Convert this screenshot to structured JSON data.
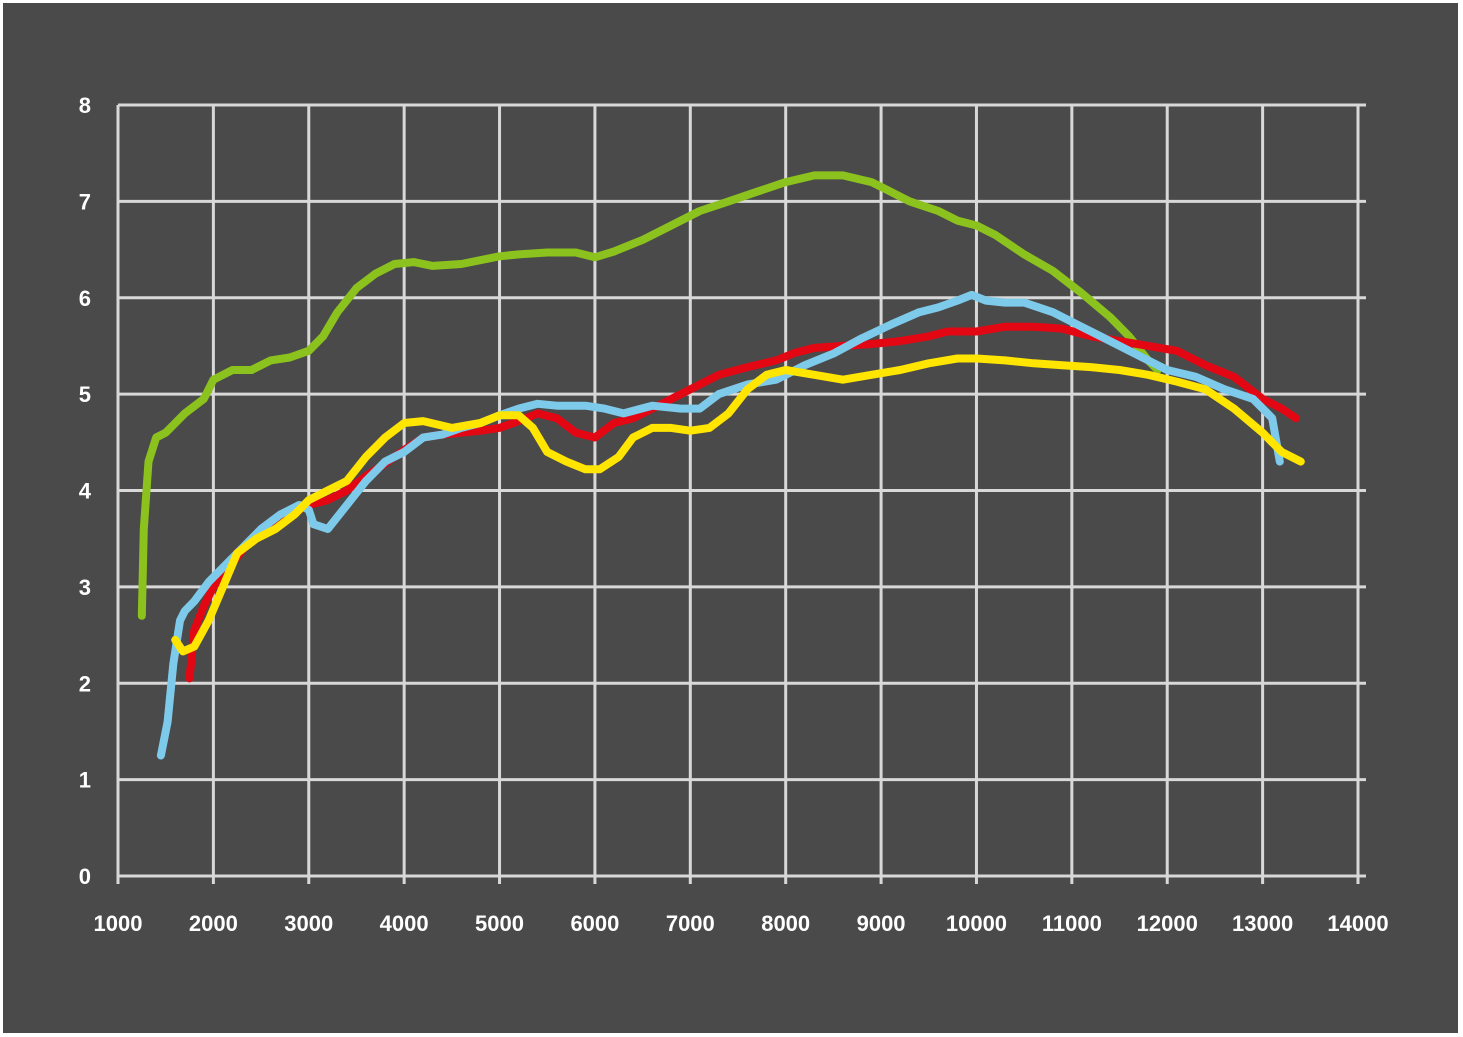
{
  "chart_data": {
    "type": "line",
    "title": "",
    "xlabel": "",
    "ylabel": "",
    "xlim": [
      1000,
      14000
    ],
    "ylim": [
      0,
      8
    ],
    "x_ticks": [
      "1000",
      "2000",
      "3000",
      "4000",
      "5000",
      "6000",
      "7000",
      "8000",
      "9000",
      "10000",
      "11000",
      "12000",
      "13000",
      "14000"
    ],
    "y_ticks": [
      "0",
      "1",
      "2",
      "3",
      "4",
      "5",
      "6",
      "7",
      "8"
    ],
    "grid": true,
    "legend": "none",
    "colors": {
      "background": "#4a4a4a",
      "grid": "#d8d8d8",
      "text": "#ffffff"
    },
    "series": [
      {
        "color": "#8cc21d",
        "points": [
          [
            1250,
            2.7
          ],
          [
            1270,
            3.6
          ],
          [
            1320,
            4.3
          ],
          [
            1400,
            4.55
          ],
          [
            1500,
            4.6
          ],
          [
            1700,
            4.8
          ],
          [
            1900,
            4.95
          ],
          [
            2000,
            5.15
          ],
          [
            2200,
            5.25
          ],
          [
            2400,
            5.25
          ],
          [
            2600,
            5.35
          ],
          [
            2800,
            5.38
          ],
          [
            3000,
            5.45
          ],
          [
            3150,
            5.6
          ],
          [
            3300,
            5.85
          ],
          [
            3500,
            6.1
          ],
          [
            3700,
            6.25
          ],
          [
            3900,
            6.35
          ],
          [
            4100,
            6.37
          ],
          [
            4300,
            6.33
          ],
          [
            4600,
            6.35
          ],
          [
            5000,
            6.43
          ],
          [
            5200,
            6.45
          ],
          [
            5500,
            6.47
          ],
          [
            5800,
            6.47
          ],
          [
            6000,
            6.42
          ],
          [
            6200,
            6.48
          ],
          [
            6500,
            6.6
          ],
          [
            6800,
            6.75
          ],
          [
            7100,
            6.9
          ],
          [
            7400,
            7.0
          ],
          [
            7700,
            7.1
          ],
          [
            8000,
            7.2
          ],
          [
            8300,
            7.27
          ],
          [
            8600,
            7.27
          ],
          [
            8900,
            7.2
          ],
          [
            9100,
            7.1
          ],
          [
            9300,
            7.0
          ],
          [
            9600,
            6.9
          ],
          [
            9800,
            6.8
          ],
          [
            10000,
            6.75
          ],
          [
            10200,
            6.65
          ],
          [
            10500,
            6.45
          ],
          [
            10800,
            6.28
          ],
          [
            11100,
            6.05
          ],
          [
            11400,
            5.8
          ],
          [
            11600,
            5.6
          ],
          [
            11800,
            5.35
          ],
          [
            11900,
            5.25
          ]
        ]
      },
      {
        "color": "#e30613",
        "points": [
          [
            1750,
            2.05
          ],
          [
            1800,
            2.55
          ],
          [
            1900,
            2.8
          ],
          [
            2000,
            3.0
          ],
          [
            2200,
            3.25
          ],
          [
            2400,
            3.5
          ],
          [
            2600,
            3.65
          ],
          [
            2800,
            3.75
          ],
          [
            3000,
            3.85
          ],
          [
            3200,
            3.9
          ],
          [
            3400,
            4.0
          ],
          [
            3600,
            4.15
          ],
          [
            3800,
            4.28
          ],
          [
            4000,
            4.42
          ],
          [
            4200,
            4.55
          ],
          [
            4400,
            4.58
          ],
          [
            4600,
            4.6
          ],
          [
            4800,
            4.62
          ],
          [
            5000,
            4.65
          ],
          [
            5200,
            4.72
          ],
          [
            5400,
            4.8
          ],
          [
            5600,
            4.75
          ],
          [
            5800,
            4.6
          ],
          [
            6000,
            4.55
          ],
          [
            6200,
            4.7
          ],
          [
            6400,
            4.75
          ],
          [
            6700,
            4.9
          ],
          [
            7000,
            5.05
          ],
          [
            7300,
            5.2
          ],
          [
            7600,
            5.28
          ],
          [
            7900,
            5.35
          ],
          [
            8100,
            5.43
          ],
          [
            8300,
            5.48
          ],
          [
            8600,
            5.5
          ],
          [
            8900,
            5.52
          ],
          [
            9200,
            5.55
          ],
          [
            9500,
            5.6
          ],
          [
            9700,
            5.65
          ],
          [
            10000,
            5.65
          ],
          [
            10300,
            5.7
          ],
          [
            10600,
            5.7
          ],
          [
            10900,
            5.68
          ],
          [
            11200,
            5.6
          ],
          [
            11500,
            5.55
          ],
          [
            11800,
            5.5
          ],
          [
            12100,
            5.45
          ],
          [
            12400,
            5.3
          ],
          [
            12700,
            5.18
          ],
          [
            13000,
            4.95
          ],
          [
            13200,
            4.85
          ],
          [
            13350,
            4.75
          ]
        ]
      },
      {
        "color": "#7dcaeb",
        "points": [
          [
            1450,
            1.25
          ],
          [
            1520,
            1.6
          ],
          [
            1580,
            2.2
          ],
          [
            1650,
            2.65
          ],
          [
            1700,
            2.75
          ],
          [
            1800,
            2.85
          ],
          [
            1950,
            3.05
          ],
          [
            2100,
            3.2
          ],
          [
            2300,
            3.4
          ],
          [
            2500,
            3.6
          ],
          [
            2700,
            3.75
          ],
          [
            2900,
            3.85
          ],
          [
            3000,
            3.8
          ],
          [
            3050,
            3.65
          ],
          [
            3200,
            3.6
          ],
          [
            3400,
            3.85
          ],
          [
            3600,
            4.1
          ],
          [
            3800,
            4.3
          ],
          [
            4000,
            4.4
          ],
          [
            4200,
            4.55
          ],
          [
            4400,
            4.58
          ],
          [
            4600,
            4.65
          ],
          [
            4800,
            4.7
          ],
          [
            5000,
            4.78
          ],
          [
            5200,
            4.85
          ],
          [
            5400,
            4.9
          ],
          [
            5600,
            4.88
          ],
          [
            5900,
            4.88
          ],
          [
            6100,
            4.85
          ],
          [
            6300,
            4.8
          ],
          [
            6600,
            4.88
          ],
          [
            6900,
            4.85
          ],
          [
            7100,
            4.85
          ],
          [
            7300,
            5.0
          ],
          [
            7600,
            5.1
          ],
          [
            7900,
            5.15
          ],
          [
            8200,
            5.3
          ],
          [
            8500,
            5.42
          ],
          [
            8800,
            5.58
          ],
          [
            9100,
            5.72
          ],
          [
            9400,
            5.85
          ],
          [
            9600,
            5.9
          ],
          [
            9800,
            5.97
          ],
          [
            9950,
            6.03
          ],
          [
            10100,
            5.97
          ],
          [
            10300,
            5.95
          ],
          [
            10500,
            5.95
          ],
          [
            10800,
            5.85
          ],
          [
            11100,
            5.7
          ],
          [
            11400,
            5.55
          ],
          [
            11700,
            5.4
          ],
          [
            12000,
            5.25
          ],
          [
            12300,
            5.18
          ],
          [
            12600,
            5.05
          ],
          [
            12900,
            4.95
          ],
          [
            13100,
            4.75
          ],
          [
            13180,
            4.3
          ]
        ]
      },
      {
        "color": "#ffe500",
        "points": [
          [
            1600,
            2.45
          ],
          [
            1680,
            2.33
          ],
          [
            1800,
            2.38
          ],
          [
            1950,
            2.65
          ],
          [
            2100,
            3.0
          ],
          [
            2250,
            3.35
          ],
          [
            2450,
            3.5
          ],
          [
            2650,
            3.6
          ],
          [
            2850,
            3.75
          ],
          [
            3000,
            3.9
          ],
          [
            3200,
            4.0
          ],
          [
            3400,
            4.1
          ],
          [
            3600,
            4.35
          ],
          [
            3800,
            4.55
          ],
          [
            4000,
            4.7
          ],
          [
            4200,
            4.72
          ],
          [
            4500,
            4.65
          ],
          [
            4800,
            4.7
          ],
          [
            5000,
            4.78
          ],
          [
            5200,
            4.78
          ],
          [
            5350,
            4.65
          ],
          [
            5500,
            4.4
          ],
          [
            5700,
            4.3
          ],
          [
            5900,
            4.22
          ],
          [
            6050,
            4.22
          ],
          [
            6250,
            4.35
          ],
          [
            6400,
            4.55
          ],
          [
            6600,
            4.65
          ],
          [
            6800,
            4.65
          ],
          [
            7000,
            4.62
          ],
          [
            7200,
            4.65
          ],
          [
            7400,
            4.8
          ],
          [
            7600,
            5.05
          ],
          [
            7800,
            5.2
          ],
          [
            8000,
            5.25
          ],
          [
            8300,
            5.2
          ],
          [
            8600,
            5.15
          ],
          [
            8900,
            5.2
          ],
          [
            9200,
            5.25
          ],
          [
            9500,
            5.32
          ],
          [
            9800,
            5.37
          ],
          [
            10000,
            5.37
          ],
          [
            10300,
            5.35
          ],
          [
            10600,
            5.32
          ],
          [
            10900,
            5.3
          ],
          [
            11200,
            5.28
          ],
          [
            11500,
            5.25
          ],
          [
            11800,
            5.2
          ],
          [
            12100,
            5.13
          ],
          [
            12400,
            5.05
          ],
          [
            12700,
            4.85
          ],
          [
            13000,
            4.6
          ],
          [
            13200,
            4.4
          ],
          [
            13400,
            4.3
          ]
        ]
      }
    ]
  }
}
